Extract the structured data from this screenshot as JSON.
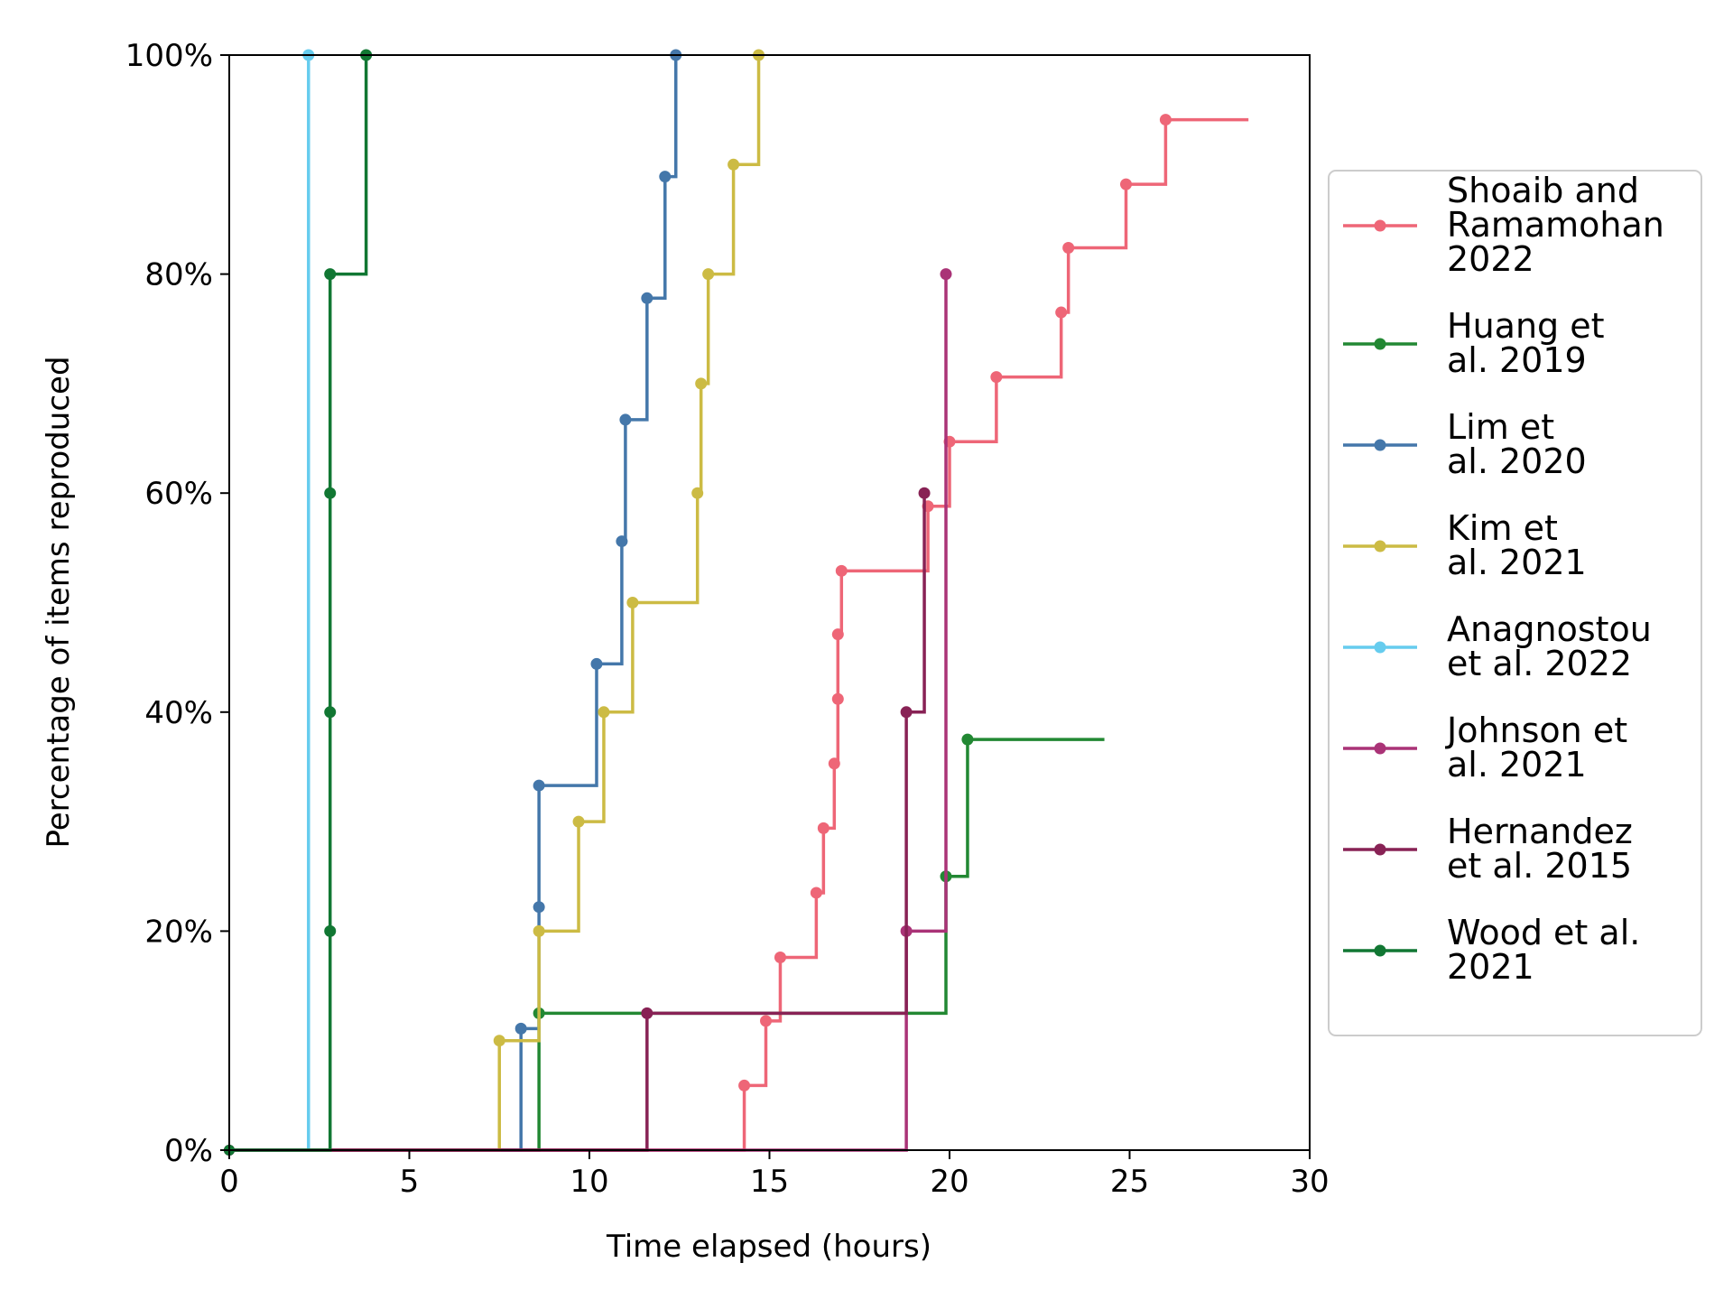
{
  "chart_data": {
    "type": "line",
    "title": "",
    "xlabel": "Time elapsed (hours)",
    "ylabel": "Percentage of items reproduced",
    "xlim": [
      0,
      30
    ],
    "ylim": [
      0,
      100
    ],
    "xticks": [
      0,
      5,
      10,
      15,
      20,
      25,
      30
    ],
    "yticks": [
      0,
      20,
      40,
      60,
      80,
      100
    ],
    "xtick_labels": [
      "0",
      "5",
      "10",
      "15",
      "20",
      "25",
      "30"
    ],
    "ytick_labels": [
      "0%",
      "20%",
      "40%",
      "60%",
      "80%",
      "100%"
    ],
    "grid": false,
    "legend_position": "right, outside plot",
    "step": "post",
    "series": [
      {
        "name": "Shoaib and Ramamohan 2022",
        "legend_lines": [
          "Shoaib and",
          "Ramamohan",
          "2022"
        ],
        "color": "#EE6677",
        "x": [
          14.3,
          14.9,
          15.3,
          16.3,
          16.5,
          16.8,
          16.9,
          16.9,
          17.0,
          19.4,
          20.0,
          21.3,
          23.1,
          23.3,
          24.9,
          26.0
        ],
        "y": [
          5.9,
          11.8,
          17.6,
          23.5,
          29.4,
          35.3,
          41.2,
          47.1,
          52.9,
          58.8,
          64.7,
          70.6,
          76.5,
          82.4,
          88.2,
          94.1
        ],
        "x_end": 28.3
      },
      {
        "name": "Huang et al. 2019",
        "legend_lines": [
          "Huang et",
          "al. 2019"
        ],
        "color": "#228833",
        "x": [
          8.6,
          19.9,
          20.5
        ],
        "y": [
          12.5,
          25.0,
          37.5
        ],
        "x_end": 24.3
      },
      {
        "name": "Lim et al. 2020",
        "legend_lines": [
          "Lim et",
          "al. 2020"
        ],
        "color": "#4477AA",
        "x": [
          8.1,
          8.6,
          8.6,
          10.2,
          10.9,
          11.0,
          11.6,
          12.1,
          12.4
        ],
        "y": [
          11.1,
          22.2,
          33.3,
          44.4,
          55.6,
          66.7,
          77.8,
          88.9,
          100.0
        ]
      },
      {
        "name": "Kim et al. 2021",
        "legend_lines": [
          "Kim et",
          "al. 2021"
        ],
        "color": "#CCBB44",
        "x": [
          7.5,
          8.6,
          9.7,
          10.4,
          11.2,
          13.0,
          13.1,
          13.3,
          14.0,
          14.7
        ],
        "y": [
          10.0,
          20.0,
          30.0,
          40.0,
          50.0,
          60.0,
          70.0,
          80.0,
          90.0,
          100.0
        ]
      },
      {
        "name": "Anagnostou et al. 2022",
        "legend_lines": [
          "Anagnostou",
          "et al. 2022"
        ],
        "color": "#66CCEE",
        "x": [
          2.2
        ],
        "y": [
          100.0
        ]
      },
      {
        "name": "Johnson et al. 2021",
        "legend_lines": [
          "Johnson et",
          "al. 2021"
        ],
        "color": "#AA3377",
        "x": [
          18.8,
          19.9
        ],
        "y": [
          20.0,
          80.0
        ]
      },
      {
        "name": "Hernandez et al. 2015",
        "legend_lines": [
          "Hernandez",
          "et al. 2015"
        ],
        "color": "#882255",
        "x": [
          11.6,
          18.8,
          19.3
        ],
        "y": [
          12.5,
          40.0,
          60.0
        ]
      },
      {
        "name": "Wood et al. 2021",
        "legend_lines": [
          "Wood et al.",
          "2021"
        ],
        "color": "#117733",
        "x": [
          2.8,
          2.8,
          2.8,
          2.8,
          3.8
        ],
        "y": [
          20.0,
          40.0,
          60.0,
          80.0,
          100.0
        ]
      }
    ]
  }
}
